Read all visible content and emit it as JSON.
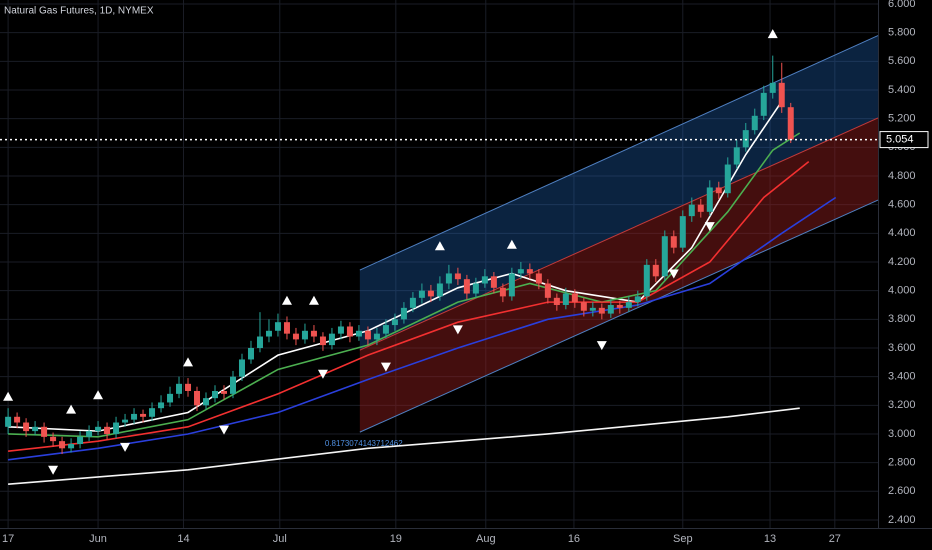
{
  "chart_data": {
    "type": "candlestick",
    "title": "Natural Gas Futures, 1D, NYMEX",
    "xlim": [
      -0.9,
      96.7
    ],
    "ylim": [
      2.344,
      6.028
    ],
    "xticks": [
      {
        "value": 0,
        "label": "17"
      },
      {
        "value": 10,
        "label": "Jun"
      },
      {
        "value": 19.5,
        "label": "14"
      },
      {
        "value": 30.2,
        "label": "Jul"
      },
      {
        "value": 43.1,
        "label": "19"
      },
      {
        "value": 53.1,
        "label": "Aug"
      },
      {
        "value": 62.9,
        "label": "16"
      },
      {
        "value": 75,
        "label": "Sep"
      },
      {
        "value": 84.7,
        "label": "13"
      },
      {
        "value": 91.9,
        "label": "27"
      }
    ],
    "yticks": [
      {
        "value": 2.4,
        "label": "2.400"
      },
      {
        "value": 2.6,
        "label": "2.600"
      },
      {
        "value": 2.8,
        "label": "2.800"
      },
      {
        "value": 3.0,
        "label": "3.000"
      },
      {
        "value": 3.2,
        "label": "3.200"
      },
      {
        "value": 3.4,
        "label": "3.400"
      },
      {
        "value": 3.6,
        "label": "3.600"
      },
      {
        "value": 3.8,
        "label": "3.800"
      },
      {
        "value": 4.0,
        "label": "4.000"
      },
      {
        "value": 4.2,
        "label": "4.200"
      },
      {
        "value": 4.4,
        "label": "4.400"
      },
      {
        "value": 4.6,
        "label": "4.600"
      },
      {
        "value": 4.8,
        "label": "4.800"
      },
      {
        "value": 5.0,
        "label": "5.000"
      },
      {
        "value": 5.2,
        "label": "5.200"
      },
      {
        "value": 5.4,
        "label": "5.400"
      },
      {
        "value": 5.6,
        "label": "5.600"
      },
      {
        "value": 5.8,
        "label": "5.800"
      },
      {
        "value": 6.0,
        "label": "6.000"
      }
    ],
    "grid": true,
    "up_color": "#26a69a",
    "down_color": "#ef5350",
    "open": [
      3.05,
      3.12,
      3.08,
      3.02,
      3.05,
      2.98,
      2.95,
      2.9,
      2.93,
      2.98,
      3.02,
      3.05,
      3.0,
      3.08,
      3.1,
      3.14,
      3.12,
      3.18,
      3.22,
      3.28,
      3.35,
      3.3,
      3.2,
      3.25,
      3.3,
      3.28,
      3.4,
      3.52,
      3.6,
      3.68,
      3.72,
      3.78,
      3.7,
      3.66,
      3.72,
      3.68,
      3.62,
      3.7,
      3.75,
      3.68,
      3.72,
      3.66,
      3.7,
      3.76,
      3.8,
      3.88,
      3.95,
      4.0,
      3.96,
      4.05,
      4.12,
      4.08,
      3.98,
      4.05,
      4.1,
      4.02,
      3.96,
      4.12,
      4.15,
      4.12,
      4.05,
      3.95,
      3.9,
      3.98,
      3.92,
      3.86,
      3.88,
      3.84,
      3.9,
      3.88,
      3.92,
      3.96,
      4.18,
      4.1,
      4.38,
      4.3,
      4.52,
      4.6,
      4.55,
      4.72,
      4.68,
      4.88,
      5.0,
      5.12,
      5.22,
      5.38,
      5.45,
      5.28
    ],
    "high": [
      3.18,
      3.15,
      3.11,
      3.09,
      3.08,
      3.01,
      2.98,
      2.97,
      3.02,
      3.06,
      3.09,
      3.08,
      3.12,
      3.14,
      3.18,
      3.17,
      3.22,
      3.27,
      3.33,
      3.4,
      3.39,
      3.33,
      3.29,
      3.34,
      3.34,
      3.44,
      3.56,
      3.65,
      3.85,
      3.8,
      3.84,
      3.82,
      3.74,
      3.77,
      3.76,
      3.71,
      3.74,
      3.79,
      3.78,
      3.76,
      3.75,
      3.74,
      3.8,
      3.84,
      3.92,
      3.99,
      4.05,
      4.04,
      4.1,
      4.18,
      4.16,
      4.11,
      4.09,
      4.15,
      4.13,
      4.05,
      4.16,
      4.2,
      4.19,
      4.15,
      4.08,
      3.98,
      4.02,
      4.01,
      3.95,
      3.92,
      3.91,
      3.94,
      3.93,
      3.96,
      4.0,
      4.22,
      4.22,
      4.42,
      4.42,
      4.56,
      4.65,
      4.64,
      4.77,
      4.76,
      4.93,
      5.05,
      5.17,
      5.27,
      5.43,
      5.64,
      5.59,
      5.31
    ],
    "low": [
      3.0,
      3.04,
      2.98,
      2.99,
      2.94,
      2.91,
      2.86,
      2.87,
      2.9,
      2.95,
      2.99,
      2.96,
      2.97,
      3.05,
      3.07,
      3.08,
      3.09,
      3.15,
      3.19,
      3.25,
      3.26,
      3.16,
      3.17,
      3.22,
      3.24,
      3.25,
      3.37,
      3.49,
      3.57,
      3.64,
      3.68,
      3.66,
      3.62,
      3.63,
      3.64,
      3.58,
      3.59,
      3.66,
      3.64,
      3.65,
      3.62,
      3.62,
      3.67,
      3.72,
      3.77,
      3.85,
      3.91,
      3.92,
      3.93,
      4.01,
      4.04,
      3.94,
      3.95,
      4.02,
      3.98,
      3.92,
      3.93,
      4.08,
      4.08,
      4.01,
      3.91,
      3.86,
      3.87,
      3.88,
      3.82,
      3.82,
      3.8,
      3.81,
      3.84,
      3.85,
      3.89,
      3.93,
      4.06,
      4.07,
      4.26,
      4.27,
      4.48,
      4.51,
      4.52,
      4.64,
      4.65,
      4.85,
      4.97,
      5.09,
      5.19,
      5.34,
      5.24,
      5.03
    ],
    "close": [
      3.12,
      3.08,
      3.02,
      3.05,
      2.98,
      2.95,
      2.9,
      2.93,
      2.98,
      3.02,
      3.05,
      3.0,
      3.08,
      3.1,
      3.14,
      3.12,
      3.18,
      3.22,
      3.28,
      3.35,
      3.3,
      3.2,
      3.25,
      3.3,
      3.28,
      3.4,
      3.52,
      3.6,
      3.68,
      3.72,
      3.78,
      3.7,
      3.66,
      3.72,
      3.68,
      3.62,
      3.7,
      3.75,
      3.68,
      3.72,
      3.66,
      3.7,
      3.76,
      3.8,
      3.88,
      3.95,
      4.0,
      3.96,
      4.05,
      4.12,
      4.08,
      3.98,
      4.05,
      4.1,
      4.02,
      3.96,
      4.12,
      4.15,
      4.12,
      4.05,
      3.95,
      3.9,
      3.98,
      3.92,
      3.86,
      3.88,
      3.84,
      3.9,
      3.88,
      3.92,
      3.96,
      4.18,
      4.1,
      4.38,
      4.3,
      4.52,
      4.6,
      4.55,
      4.72,
      4.68,
      4.88,
      5.0,
      5.12,
      5.22,
      5.38,
      5.45,
      5.28,
      5.054
    ],
    "last_price": {
      "value": 5.054,
      "label": "5.054"
    },
    "channel": {
      "x": [
        39.1,
        96.7
      ],
      "upper": [
        4.144,
        5.78
      ],
      "middle": [
        3.585,
        5.205
      ],
      "lower": [
        3.013,
        4.632
      ],
      "label": "0.8173074143712462"
    },
    "lines": [
      {
        "color": "#ffffff",
        "x": [
          0,
          10,
          20,
          30,
          40,
          50,
          56,
          62,
          70,
          76,
          82,
          86
        ],
        "values": [
          3.05,
          3.02,
          3.15,
          3.55,
          3.72,
          4.02,
          4.12,
          4.0,
          3.92,
          4.3,
          4.95,
          5.32
        ]
      },
      {
        "color": "#4caf50",
        "x": [
          0,
          10,
          20,
          30,
          40,
          50,
          58,
          66,
          72,
          80,
          85,
          88
        ],
        "values": [
          3.0,
          2.98,
          3.1,
          3.45,
          3.62,
          3.92,
          4.05,
          3.92,
          4.0,
          4.55,
          4.98,
          5.1
        ]
      },
      {
        "color": "#f23030",
        "x": [
          0,
          10,
          20,
          30,
          40,
          50,
          60,
          70,
          78,
          84,
          89
        ],
        "values": [
          2.88,
          2.95,
          3.05,
          3.28,
          3.55,
          3.78,
          3.92,
          3.92,
          4.2,
          4.65,
          4.9
        ]
      },
      {
        "color": "#2a3fdc",
        "x": [
          0,
          10,
          20,
          30,
          40,
          50,
          60,
          70,
          78,
          86,
          92
        ],
        "values": [
          2.82,
          2.9,
          3.0,
          3.15,
          3.38,
          3.6,
          3.8,
          3.9,
          4.05,
          4.4,
          4.65
        ]
      },
      {
        "color": "#f5f5f5",
        "x": [
          0,
          20,
          40,
          60,
          80,
          88
        ],
        "values": [
          2.65,
          2.75,
          2.9,
          3.0,
          3.12,
          3.18
        ]
      }
    ],
    "signals_up": {
      "x": [
        0,
        7,
        10,
        20,
        31,
        34,
        48,
        56,
        85
      ],
      "values": [
        3.26,
        3.17,
        3.27,
        3.5,
        3.93,
        3.93,
        4.31,
        4.32,
        5.79
      ]
    },
    "signals_down": {
      "x": [
        5,
        13,
        24,
        35,
        42,
        50,
        66,
        74,
        78
      ],
      "values": [
        2.75,
        2.91,
        3.03,
        3.42,
        3.47,
        3.73,
        3.62,
        4.12,
        4.45
      ]
    }
  }
}
